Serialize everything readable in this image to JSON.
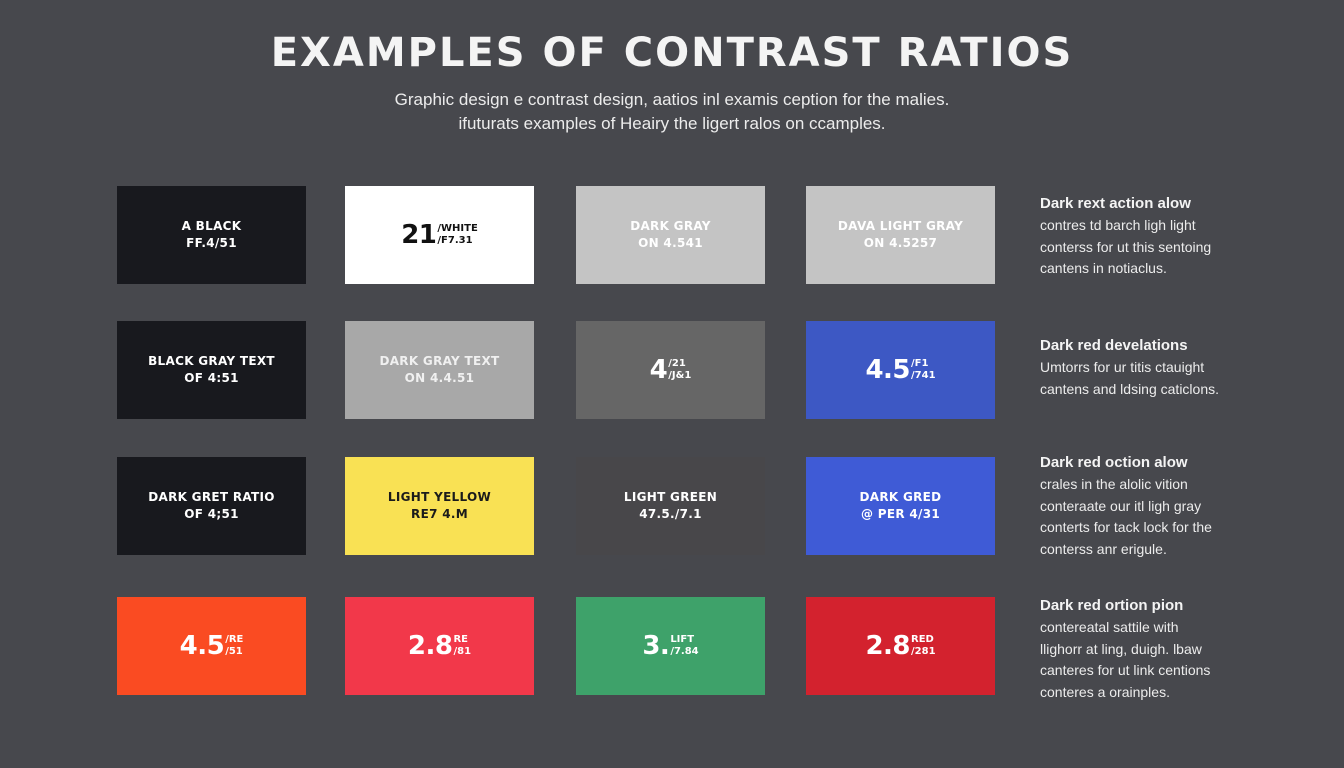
{
  "header": {
    "title": "EXAMPLES OF CONTRAST RATIOS",
    "subtitle_lines": [
      "Graphic design e contrast design, aatios inl examis ception for  the malies.",
      "ifuturats examples of Heairy the ligert ralos on ccamples."
    ]
  },
  "colors": {
    "background": "#47484d",
    "black": "#18191e",
    "white": "#ffffff",
    "light_gray": "#c4c4c4",
    "mid_gray": "#a8a8a8",
    "dark_gray": "#666666",
    "charcoal": "#48474a",
    "blue": "#3d58c4",
    "blue_bright": "#3f5bd6",
    "yellow": "#f9e154",
    "orange_red": "#fa4b22",
    "red": "#f2384a",
    "green": "#3ea26a",
    "dark_red": "#d3222e"
  },
  "grid": {
    "rows": [
      {
        "swatches": [
          {
            "type": "label",
            "bg": "#18191e",
            "fg": "#ffffff",
            "line1": "A BLACK",
            "line2": "FF.4/51"
          },
          {
            "type": "ratio",
            "bg": "#ffffff",
            "fg": "#111111",
            "big": "21",
            "top": "/WHITE",
            "bottom": "/F7.31"
          },
          {
            "type": "label",
            "bg": "#c4c4c4",
            "fg": "#ffffff",
            "line1": "DARK GRAY",
            "line2": "ON 4.541"
          },
          {
            "type": "label",
            "bg": "#c4c4c4",
            "fg": "#ffffff",
            "line1": "DAVA LIGHT GRAY",
            "line2": "ON 4.5257"
          }
        ],
        "description": {
          "heading": "Dark rext action alow",
          "lines": [
            "contres td barch ligh light",
            "conterss for ut this sentoing",
            "cantens in notiaclus."
          ]
        }
      },
      {
        "swatches": [
          {
            "type": "label",
            "bg": "#18191e",
            "fg": "#ffffff",
            "line1": "BLACK GRAY TEXT",
            "line2": "OF 4:51"
          },
          {
            "type": "label",
            "bg": "#a8a8a8",
            "fg": "#f0f0f0",
            "line1": "DARK GRAY TEXT",
            "line2": "ON 4.4.51"
          },
          {
            "type": "ratio",
            "bg": "#666666",
            "fg": "#ffffff",
            "big": "4",
            "top": "/21",
            "bottom": "/J&1"
          },
          {
            "type": "ratio",
            "bg": "#3d58c4",
            "fg": "#ffffff",
            "big": "4.5",
            "top": "/F1",
            "bottom": "/741"
          }
        ],
        "description": {
          "heading": "Dark red develations",
          "lines": [
            "Umtorrs for ur titis ctauight",
            "cantens and ldsing caticlons."
          ]
        }
      },
      {
        "swatches": [
          {
            "type": "label",
            "bg": "#18191e",
            "fg": "#ffffff",
            "line1": "DARK GRET RATIO",
            "line2": "OF 4;51"
          },
          {
            "type": "label",
            "bg": "#f9e154",
            "fg": "#1b1b1b",
            "line1": "LIGHT YELLOW",
            "line2": "RE7 4.M"
          },
          {
            "type": "label",
            "bg": "#48474a",
            "fg": "#ffffff",
            "line1": "LIGHT GREEN",
            "line2": "47.5./7.1"
          },
          {
            "type": "label",
            "bg": "#3f5bd6",
            "fg": "#ffffff",
            "line1": "DARK GRED",
            "line2": "@ PER 4/31"
          }
        ],
        "description": {
          "heading": "Dark red oction alow",
          "lines": [
            "crales in the alolic vition",
            "conteraate our itl ligh gray",
            "conterts for tack lock for the",
            "conterss anr erigule."
          ]
        }
      },
      {
        "swatches": [
          {
            "type": "ratio",
            "bg": "#fa4b22",
            "fg": "#ffffff",
            "big": "4.5",
            "top": "/RE",
            "bottom": "/51"
          },
          {
            "type": "ratio",
            "bg": "#f2384a",
            "fg": "#ffffff",
            "big": "2.8",
            "top": "RE",
            "bottom": "/81"
          },
          {
            "type": "ratio",
            "bg": "#3ea26a",
            "fg": "#ffffff",
            "big": "3.",
            "top": "LIFT",
            "bottom": "/7.84"
          },
          {
            "type": "ratio",
            "bg": "#d3222e",
            "fg": "#ffffff",
            "big": "2.8",
            "top": "RED",
            "bottom": "/281"
          }
        ],
        "description": {
          "heading": "Dark red ortion pion",
          "lines": [
            "contereatal sattile with",
            "llighorr at ling, duigh. lbaw",
            "canteres for ut link centions",
            "conteres a orainples."
          ]
        }
      }
    ]
  }
}
